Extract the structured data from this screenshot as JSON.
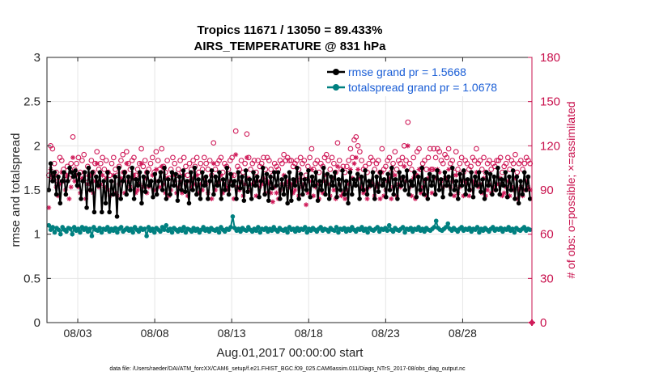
{
  "chart_data": {
    "type": "line",
    "title": "Tropics 11671 / 13050 = 89.433%",
    "subtitle": "AIRS_TEMPERATURE @ 831 hPa",
    "xlabel": "Aug.01,2017 00:00:00 start",
    "ylabel": "rmse and totalspread",
    "ylabel_right": "# of obs: o=possible; ×=assimilated",
    "x_tick_labels": [
      "08/03",
      "08/08",
      "08/13",
      "08/18",
      "08/23",
      "08/28"
    ],
    "x_tick_days": [
      3,
      8,
      13,
      18,
      23,
      28
    ],
    "xlim": [
      1,
      32.5
    ],
    "ylim": [
      0,
      3
    ],
    "y_ticks": [
      "0",
      "0.5",
      "1",
      "1.5",
      "2",
      "2.5",
      "3"
    ],
    "y2lim": [
      0,
      180
    ],
    "y2_ticks": [
      "0",
      "30",
      "60",
      "90",
      "120",
      "150",
      "180"
    ],
    "legend_position": "top-right",
    "grid": true,
    "footnote": "data file: /Users/raeder/DAI/ATM_forcXX/CAM6_setup/f.e21.FHIST_BGC.f09_025.CAM6assim.011/Diags_NTrS_2017-08/obs_diag_output.nc",
    "colors": {
      "rmse": "#000000",
      "totalspread": "#008080",
      "obs": "#d01c5a"
    },
    "series": [
      {
        "name": "rmse grand pr = 1.5668",
        "axis": "left",
        "marker": "dot",
        "values": [
          1.5,
          1.8,
          1.6,
          1.7,
          1.45,
          1.65,
          1.35,
          1.6,
          1.7,
          1.45,
          1.6,
          1.75,
          1.7,
          1.65,
          1.72,
          1.55,
          1.68,
          1.4,
          1.6,
          1.7,
          1.3,
          1.75,
          1.5,
          1.7,
          1.25,
          1.65,
          1.55,
          1.7,
          1.25,
          1.6,
          1.35,
          1.7,
          1.25,
          1.6,
          1.45,
          1.65,
          1.2,
          1.75,
          1.4,
          1.6,
          1.7,
          1.45,
          1.65,
          1.5,
          1.75,
          1.4,
          1.62,
          1.55,
          1.7,
          1.35,
          1.65,
          1.48,
          1.7,
          1.55,
          1.6,
          1.42,
          1.68,
          1.45,
          1.6,
          1.7,
          1.5,
          1.75,
          1.4,
          1.62,
          1.45,
          1.7,
          1.55,
          1.68,
          1.38,
          1.65,
          1.5,
          1.72,
          1.48,
          1.6,
          1.35,
          1.7,
          1.5,
          1.75,
          1.45,
          1.62,
          1.4,
          1.7,
          1.55,
          1.65,
          1.4,
          1.6,
          1.72,
          1.45,
          1.65,
          1.55,
          1.7,
          1.4,
          1.62,
          1.5,
          1.75,
          1.45,
          1.68,
          1.55,
          1.6,
          1.4,
          1.7,
          1.52,
          1.65,
          1.38,
          1.72,
          1.48,
          1.62,
          1.4,
          1.7,
          1.55,
          1.65,
          1.42,
          1.6,
          1.75,
          1.45,
          1.68,
          1.38,
          1.65,
          1.52,
          1.7,
          1.55,
          1.7,
          1.4,
          1.62,
          1.45,
          1.65,
          1.35,
          1.7,
          1.38,
          1.62,
          1.55,
          1.75,
          1.4,
          1.68,
          1.45,
          1.62,
          1.5,
          1.72,
          1.42,
          1.65,
          1.55,
          1.7,
          1.38,
          1.6,
          1.5,
          1.75,
          1.45,
          1.68,
          1.4,
          1.65,
          1.55,
          1.7,
          1.42,
          1.62,
          1.5,
          1.72,
          1.45,
          1.6,
          1.35,
          1.7,
          1.45,
          1.62,
          1.55,
          1.68,
          1.4,
          1.65,
          1.5,
          1.72,
          1.45,
          1.6,
          1.55,
          1.7,
          1.4,
          1.65,
          1.48,
          1.7,
          1.55,
          1.62,
          1.42,
          1.68,
          1.5,
          1.75,
          1.45,
          1.62,
          1.4,
          1.7,
          1.55,
          1.65,
          1.5,
          1.72,
          1.45,
          1.6,
          1.55,
          1.7,
          1.42,
          1.65,
          1.5,
          1.75,
          1.45,
          1.62,
          1.4,
          1.68,
          1.55,
          1.65,
          1.45,
          1.72,
          1.5,
          1.62,
          1.42,
          1.7,
          1.55,
          1.65,
          1.45,
          1.75,
          1.5,
          1.6,
          1.4,
          1.68,
          1.55,
          1.72,
          1.45,
          1.62,
          1.5,
          1.7,
          1.42,
          1.65,
          1.55,
          1.7,
          1.48,
          1.62,
          1.4,
          1.7,
          1.55,
          1.68,
          1.45,
          1.65,
          1.5,
          1.75,
          1.45,
          1.62,
          1.55,
          1.7,
          1.42,
          1.65,
          1.5,
          1.72,
          1.4,
          1.65,
          1.35,
          1.6,
          1.45,
          1.7,
          1.5,
          1.65,
          1.4
        ]
      },
      {
        "name": "totalspread grand pr = 1.0678",
        "axis": "left",
        "marker": "dot",
        "values": [
          1.1,
          1.05,
          1.08,
          1.02,
          1.07,
          1.05,
          1.0,
          1.08,
          1.05,
          1.03,
          1.07,
          1.06,
          1.0,
          1.08,
          1.04,
          1.06,
          1.02,
          1.08,
          1.05,
          1.07,
          1.03,
          1.06,
          0.98,
          1.08,
          1.05,
          1.04,
          1.07,
          1.02,
          1.06,
          1.05,
          1.08,
          1.03,
          1.06,
          1.04,
          1.07,
          1.02,
          1.06,
          1.08,
          1.03,
          1.05,
          1.07,
          1.04,
          1.06,
          1.02,
          1.08,
          1.05,
          1.03,
          1.07,
          1.05,
          1.06,
          0.98,
          1.08,
          1.04,
          1.06,
          1.02,
          1.07,
          1.05,
          1.03,
          1.08,
          1.05,
          1.1,
          1.04,
          1.06,
          1.02,
          1.07,
          1.05,
          1.03,
          1.06,
          1.04,
          1.08,
          1.02,
          1.06,
          1.05,
          1.03,
          1.07,
          1.04,
          1.06,
          1.02,
          1.05,
          1.08,
          1.04,
          1.06,
          1.03,
          1.07,
          1.05,
          1.04,
          1.06,
          1.02,
          1.08,
          1.05,
          1.03,
          1.06,
          1.05,
          1.08,
          1.2,
          1.07,
          1.04,
          1.06,
          1.03,
          1.07,
          1.05,
          1.04,
          1.08,
          1.05,
          1.03,
          1.06,
          1.04,
          1.08,
          1.02,
          1.06,
          1.05,
          1.07,
          1.03,
          1.06,
          1.04,
          1.08,
          1.05,
          1.03,
          1.07,
          1.05,
          1.04,
          1.06,
          1.02,
          1.08,
          1.05,
          1.06,
          1.03,
          1.07,
          1.04,
          1.06,
          1.05,
          1.08,
          1.02,
          1.06,
          1.04,
          1.07,
          1.05,
          1.03,
          1.06,
          1.08,
          1.04,
          1.06,
          1.05,
          1.03,
          1.07,
          1.05,
          1.04,
          1.08,
          1.02,
          1.06,
          1.05,
          1.07,
          1.03,
          1.06,
          1.04,
          1.08,
          1.05,
          1.03,
          1.06,
          1.05,
          1.08,
          1.04,
          1.06,
          1.02,
          1.07,
          1.05,
          1.04,
          1.06,
          1.08,
          1.03,
          1.06,
          1.05,
          1.07,
          1.04,
          1.1,
          1.05,
          1.03,
          1.07,
          1.05,
          1.04,
          1.06,
          1.08,
          1.02,
          1.06,
          1.05,
          1.07,
          1.03,
          1.06,
          1.05,
          1.08,
          1.04,
          1.06,
          1.03,
          1.07,
          1.05,
          1.04,
          1.06,
          1.08,
          1.15,
          1.07,
          1.05,
          1.04,
          1.06,
          1.08,
          1.12,
          1.06,
          1.04,
          1.07,
          1.05,
          1.03,
          1.06,
          1.08,
          1.04,
          1.06,
          1.05,
          1.07,
          1.03,
          1.06,
          1.05,
          1.08,
          1.02,
          1.06,
          1.04,
          1.07,
          1.05,
          1.03,
          1.06,
          1.08,
          1.04,
          1.06,
          1.05,
          1.07,
          1.03,
          1.06,
          1.05,
          1.08,
          1.04,
          1.06,
          1.02,
          1.07,
          1.05,
          1.04,
          1.06,
          1.08,
          1.04,
          1.06,
          1.05
        ]
      },
      {
        "name": "obs possible",
        "axis": "right",
        "marker": "circle",
        "values": [
          100,
          120,
          118,
          108,
          102,
          96,
          112,
          110,
          104,
          100,
          106,
          98,
          108,
          126,
          104,
          108,
          112,
          102,
          110,
          114,
          98,
          106,
          100,
          110,
          102,
          108,
          116,
          104,
          108,
          112,
          104,
          110,
          102,
          100,
          108,
          112,
          104,
          100,
          106,
          110,
          114,
          102,
          116,
          108,
          104,
          110,
          112,
          100,
          104,
          108,
          118,
          106,
          110,
          102,
          104,
          108,
          112,
          102,
          116,
          110,
          104,
          118,
          106,
          102,
          110,
          98,
          104,
          112,
          108,
          100,
          104,
          110,
          102,
          112,
          106,
          100,
          108,
          104,
          110,
          106,
          112,
          102,
          108,
          104,
          112,
          108,
          104,
          110,
          100,
          122,
          104,
          108,
          110,
          112,
          102,
          108,
          106,
          104,
          110,
          112,
          100,
          130,
          106,
          104,
          110,
          102,
          108,
          128,
          112,
          104,
          108,
          110,
          102,
          110,
          106,
          108,
          112,
          104,
          112,
          110,
          104,
          100,
          108,
          106,
          104,
          110,
          108,
          114,
          110,
          112,
          110,
          110,
          106,
          108,
          110,
          104,
          112,
          108,
          110,
          100,
          106,
          112,
          118,
          104,
          108,
          110,
          102,
          108,
          106,
          112,
          114,
          110,
          104,
          112,
          108,
          102,
          122,
          110,
          104,
          106,
          102,
          106,
          110,
          118,
          112,
          124,
          126,
          120,
          116,
          110,
          104,
          106,
          102,
          108,
          112,
          110,
          104,
          108,
          110,
          102,
          118,
          104,
          106,
          110,
          112,
          102,
          108,
          116,
          104,
          110,
          108,
          112,
          120,
          110,
          136,
          108,
          104,
          112,
          100,
          116,
          118,
          104,
          108,
          110,
          104,
          112,
          118,
          104,
          118,
          112,
          118,
          116,
          110,
          108,
          114,
          112,
          118,
          108,
          110,
          102,
          116,
          104,
          108,
          112,
          102,
          110,
          108,
          104,
          106,
          112,
          110,
          118,
          108,
          110,
          104,
          112,
          102,
          108,
          110,
          104,
          108,
          106,
          110,
          110,
          112,
          102,
          106,
          108,
          112,
          104,
          110,
          108,
          114,
          102,
          108,
          110,
          104,
          108,
          112,
          110,
          108
        ]
      },
      {
        "name": "obs assimilated",
        "axis": "right",
        "marker": "asterisk",
        "values": [
          78,
          104,
          98,
          100,
          92,
          86,
          94,
          102,
          96,
          90,
          100,
          84,
          92,
          112,
          96,
          100,
          92,
          88,
          98,
          102,
          84,
          94,
          90,
          100,
          88,
          96,
          108,
          92,
          94,
          100,
          92,
          98,
          90,
          86,
          96,
          100,
          88,
          86,
          94,
          98,
          102,
          88,
          108,
          96,
          92,
          98,
          100,
          88,
          90,
          94,
          108,
          92,
          98,
          88,
          92,
          96,
          100,
          90,
          104,
          96,
          92,
          106,
          94,
          88,
          98,
          86,
          90,
          100,
          96,
          88,
          92,
          96,
          88,
          100,
          94,
          86,
          96,
          92,
          98,
          94,
          100,
          88,
          94,
          90,
          98,
          94,
          88,
          96,
          84,
          108,
          90,
          94,
          96,
          100,
          88,
          94,
          92,
          90,
          96,
          100,
          84,
          114,
          92,
          90,
          96,
          86,
          94,
          112,
          98,
          90,
          94,
          96,
          86,
          96,
          92,
          94,
          98,
          88,
          96,
          94,
          88,
          82,
          92,
          88,
          84,
          90,
          94,
          100,
          94,
          96,
          92,
          94,
          88,
          90,
          96,
          86,
          98,
          92,
          94,
          80,
          88,
          96,
          104,
          86,
          92,
          94,
          84,
          90,
          88,
          96,
          100,
          94,
          86,
          98,
          90,
          84,
          106,
          94,
          86,
          88,
          84,
          90,
          94,
          104,
          98,
          108,
          112,
          104,
          98,
          92,
          88,
          90,
          84,
          92,
          96,
          94,
          86,
          92,
          94,
          84,
          102,
          86,
          90,
          96,
          98,
          84,
          92,
          100,
          86,
          94,
          92,
          98,
          106,
          96,
          120,
          92,
          86,
          98,
          84,
          100,
          104,
          88,
          92,
          96,
          86,
          98,
          104,
          88,
          104,
          98,
          104,
          102,
          96,
          92,
          98,
          98,
          104,
          92,
          96,
          86,
          100,
          88,
          92,
          96,
          86,
          96,
          94,
          86,
          90,
          96,
          94,
          102,
          92,
          94,
          88,
          98,
          86,
          90,
          94,
          88,
          92,
          90,
          94,
          94,
          98,
          86,
          88,
          92,
          96,
          86,
          92,
          90,
          98,
          84,
          90,
          92,
          86,
          90,
          96,
          92,
          90
        ]
      }
    ]
  }
}
